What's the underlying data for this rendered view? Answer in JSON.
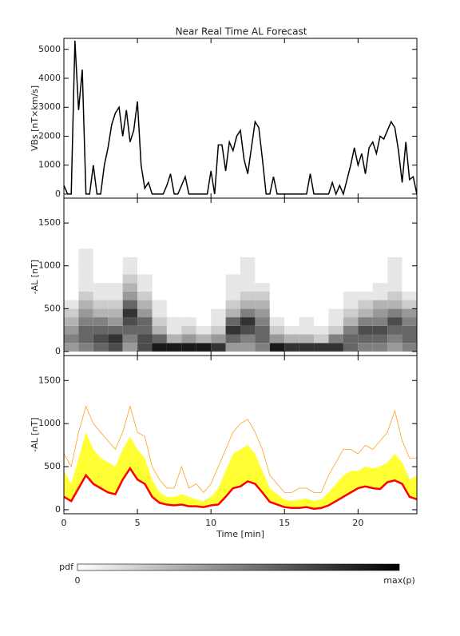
{
  "chart_data": [
    {
      "type": "line",
      "title": "Near Real Time AL Forecast",
      "ylabel": "VBs [nT×km/s]",
      "x": [
        0,
        0.25,
        0.5,
        0.75,
        1,
        1.25,
        1.5,
        1.75,
        2,
        2.25,
        2.5,
        2.75,
        3,
        3.25,
        3.5,
        3.75,
        4,
        4.25,
        4.5,
        4.75,
        5,
        5.25,
        5.5,
        5.75,
        6,
        6.25,
        6.5,
        6.75,
        7,
        7.25,
        7.5,
        7.75,
        8,
        8.25,
        8.5,
        8.75,
        9,
        9.25,
        9.5,
        9.75,
        10,
        10.25,
        10.5,
        10.75,
        11,
        11.25,
        11.5,
        11.75,
        12,
        12.25,
        12.5,
        12.75,
        13,
        13.25,
        13.5,
        13.75,
        14,
        14.25,
        14.5,
        14.75,
        15,
        15.25,
        15.5,
        15.75,
        16,
        16.25,
        16.5,
        16.75,
        17,
        17.25,
        17.5,
        17.75,
        18,
        18.25,
        18.5,
        18.75,
        19,
        19.25,
        19.5,
        19.75,
        20,
        20.25,
        20.5,
        20.75,
        21,
        21.25,
        21.5,
        21.75,
        22,
        22.25,
        22.5,
        22.75,
        23,
        23.25,
        23.5,
        23.75,
        24
      ],
      "values": [
        300,
        0,
        0,
        5300,
        2900,
        4300,
        0,
        0,
        1000,
        0,
        0,
        1000,
        1600,
        2400,
        2800,
        3000,
        2000,
        2900,
        1800,
        2200,
        3200,
        1000,
        200,
        400,
        0,
        0,
        0,
        0,
        300,
        700,
        0,
        0,
        300,
        600,
        0,
        0,
        0,
        0,
        0,
        0,
        800,
        0,
        1700,
        1700,
        800,
        1800,
        1500,
        2000,
        2200,
        1200,
        700,
        1600,
        2500,
        2300,
        1200,
        0,
        0,
        600,
        0,
        0,
        0,
        0,
        0,
        0,
        0,
        0,
        0,
        700,
        0,
        0,
        0,
        0,
        0,
        400,
        0,
        300,
        0,
        500,
        1000,
        1600,
        1000,
        1400,
        700,
        1600,
        1800,
        1400,
        2000,
        1900,
        2200,
        2500,
        2300,
        1500,
        400,
        1800,
        500,
        600,
        0
      ],
      "color": "#000000",
      "xlim": [
        0,
        24
      ],
      "xticks": [
        0,
        5,
        10,
        15,
        20
      ],
      "show_xtick_labels": false,
      "ylim": [
        -140,
        5380
      ],
      "yticks": [
        0,
        1000,
        2000,
        3000,
        4000,
        5000
      ]
    },
    {
      "type": "heatmap",
      "ylabel": "-AL [nT]",
      "x_edges": [
        0,
        1,
        2,
        3,
        4,
        5,
        6,
        7,
        8,
        9,
        10,
        11,
        12,
        13,
        14,
        15,
        16,
        17,
        18,
        19,
        20,
        21,
        22,
        23,
        24
      ],
      "y_edges": [
        0,
        100,
        200,
        300,
        400,
        500,
        600,
        700,
        800,
        900,
        1000,
        1100,
        1200
      ],
      "z": [
        [
          0.4,
          0.5,
          0.4,
          0.3,
          0.2,
          0.1,
          0,
          0,
          0,
          0,
          0,
          0
        ],
        [
          0.5,
          0.6,
          0.6,
          0.5,
          0.4,
          0.3,
          0.2,
          0.1,
          0.1,
          0.1,
          0.1,
          0.1
        ],
        [
          0.6,
          0.7,
          0.6,
          0.5,
          0.3,
          0.2,
          0.1,
          0.1,
          0,
          0,
          0,
          0
        ],
        [
          0.7,
          0.8,
          0.6,
          0.4,
          0.3,
          0.2,
          0.1,
          0.1,
          0,
          0,
          0,
          0
        ],
        [
          0.4,
          0.5,
          0.6,
          0.7,
          0.8,
          0.6,
          0.4,
          0.3,
          0.2,
          0.1,
          0.1,
          0
        ],
        [
          0.7,
          0.7,
          0.6,
          0.6,
          0.4,
          0.3,
          0.2,
          0.1,
          0.1,
          0,
          0,
          0
        ],
        [
          0.9,
          0.6,
          0.3,
          0.2,
          0.1,
          0.1,
          0,
          0,
          0,
          0,
          0,
          0
        ],
        [
          0.9,
          0.3,
          0.1,
          0.1,
          0,
          0,
          0,
          0,
          0,
          0,
          0,
          0
        ],
        [
          0.9,
          0.4,
          0.2,
          0.1,
          0,
          0,
          0,
          0,
          0,
          0,
          0,
          0
        ],
        [
          0.9,
          0.3,
          0.1,
          0,
          0,
          0,
          0,
          0,
          0,
          0,
          0,
          0
        ],
        [
          0.8,
          0.4,
          0.2,
          0.1,
          0.1,
          0,
          0,
          0,
          0,
          0,
          0,
          0
        ],
        [
          0.4,
          0.6,
          0.8,
          0.6,
          0.3,
          0.2,
          0.1,
          0.1,
          0.1,
          0,
          0,
          0
        ],
        [
          0.4,
          0.5,
          0.7,
          0.8,
          0.5,
          0.3,
          0.2,
          0.1,
          0.1,
          0.1,
          0.1,
          0
        ],
        [
          0.5,
          0.6,
          0.6,
          0.5,
          0.4,
          0.3,
          0.2,
          0.1,
          0,
          0,
          0,
          0
        ],
        [
          0.9,
          0.4,
          0.2,
          0.1,
          0,
          0,
          0,
          0,
          0,
          0,
          0,
          0
        ],
        [
          0.8,
          0.3,
          0.1,
          0,
          0,
          0,
          0,
          0,
          0,
          0,
          0,
          0
        ],
        [
          0.8,
          0.3,
          0.1,
          0.1,
          0,
          0,
          0,
          0,
          0,
          0,
          0,
          0
        ],
        [
          0.8,
          0.2,
          0.1,
          0,
          0,
          0,
          0,
          0,
          0,
          0,
          0,
          0
        ],
        [
          0.8,
          0.5,
          0.2,
          0.1,
          0.1,
          0,
          0,
          0,
          0,
          0,
          0,
          0
        ],
        [
          0.6,
          0.6,
          0.5,
          0.3,
          0.2,
          0.1,
          0.1,
          0,
          0,
          0,
          0,
          0
        ],
        [
          0.5,
          0.6,
          0.7,
          0.5,
          0.3,
          0.2,
          0.1,
          0,
          0,
          0,
          0,
          0
        ],
        [
          0.5,
          0.6,
          0.7,
          0.5,
          0.4,
          0.3,
          0.1,
          0.1,
          0,
          0,
          0,
          0
        ],
        [
          0.4,
          0.5,
          0.6,
          0.7,
          0.5,
          0.3,
          0.2,
          0.1,
          0.1,
          0.1,
          0.1,
          0
        ],
        [
          0.5,
          0.6,
          0.6,
          0.5,
          0.4,
          0.2,
          0.1,
          0,
          0,
          0,
          0,
          0
        ]
      ],
      "xlim": [
        0,
        24
      ],
      "xticks": [
        0,
        5,
        10,
        15,
        20
      ],
      "show_xtick_labels": false,
      "ylim": [
        -47,
        1790
      ],
      "yticks": [
        0,
        500,
        1000,
        1500
      ]
    },
    {
      "type": "band",
      "ylabel": "-AL [nT]",
      "xlabel": "Time [min]",
      "x": [
        0,
        0.5,
        1,
        1.5,
        2,
        2.5,
        3,
        3.5,
        4,
        4.5,
        5,
        5.5,
        6,
        6.5,
        7,
        7.5,
        8,
        8.5,
        9,
        9.5,
        10,
        10.5,
        11,
        11.5,
        12,
        12.5,
        13,
        13.5,
        14,
        14.5,
        15,
        15.5,
        16,
        16.5,
        17,
        17.5,
        18,
        18.5,
        19,
        19.5,
        20,
        20.5,
        21,
        21.5,
        22,
        22.5,
        23,
        23.5,
        24
      ],
      "median": {
        "color": "#ff0000",
        "values": [
          150,
          100,
          250,
          400,
          300,
          250,
          200,
          180,
          350,
          480,
          350,
          300,
          150,
          80,
          60,
          50,
          60,
          40,
          40,
          30,
          50,
          60,
          150,
          250,
          270,
          330,
          300,
          200,
          90,
          60,
          30,
          20,
          20,
          30,
          10,
          20,
          50,
          100,
          150,
          200,
          250,
          270,
          250,
          240,
          320,
          340,
          300,
          150,
          120
        ]
      },
      "upper": {
        "color": "#ffff33",
        "values": [
          450,
          300,
          600,
          900,
          700,
          600,
          550,
          500,
          700,
          850,
          700,
          600,
          350,
          200,
          150,
          150,
          180,
          150,
          120,
          100,
          150,
          250,
          450,
          650,
          700,
          750,
          650,
          450,
          250,
          180,
          120,
          100,
          120,
          130,
          100,
          120,
          200,
          300,
          400,
          450,
          450,
          500,
          480,
          500,
          550,
          650,
          550,
          350,
          400
        ]
      },
      "max": {
        "color": "#ffa020",
        "values": [
          650,
          500,
          900,
          1200,
          1000,
          900,
          800,
          700,
          900,
          1200,
          900,
          850,
          500,
          350,
          250,
          250,
          500,
          250,
          300,
          200,
          300,
          500,
          700,
          900,
          1000,
          1050,
          900,
          700,
          400,
          300,
          200,
          200,
          250,
          250,
          200,
          200,
          400,
          550,
          700,
          700,
          650,
          750,
          700,
          800,
          900,
          1150,
          800,
          600,
          600
        ]
      },
      "xlim": [
        0,
        24
      ],
      "xticks": [
        0,
        5,
        10,
        15,
        20
      ],
      "show_xtick_labels": true,
      "ylim": [
        -47,
        1790
      ],
      "yticks": [
        0,
        500,
        1000,
        1500
      ]
    }
  ],
  "colorbar": {
    "label": "pdf",
    "min_label": "0",
    "max_label": "max(p)"
  }
}
